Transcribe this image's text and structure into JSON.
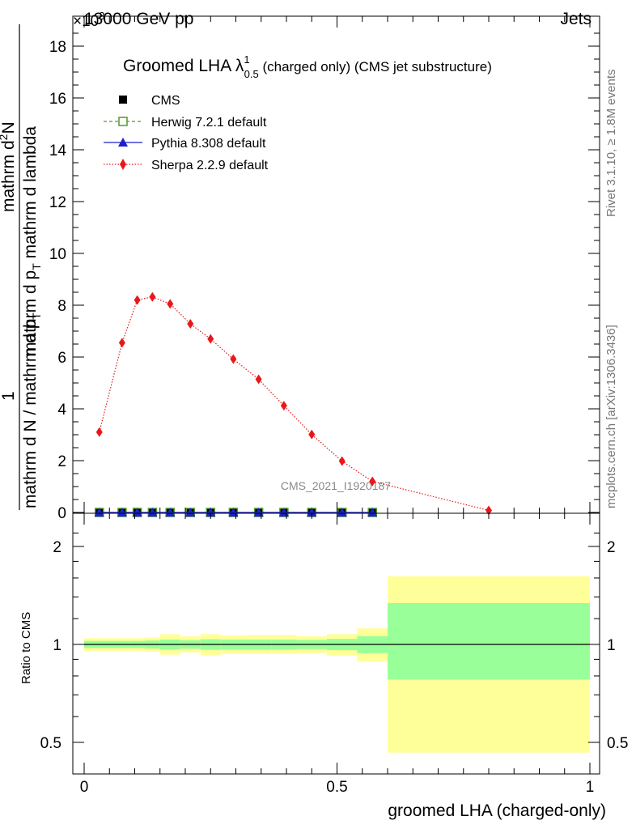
{
  "header": {
    "left_label": "13000 GeV pp",
    "right_label": "Jets",
    "multiplier": "×10",
    "multiplier_exp": "3"
  },
  "side_labels": {
    "rivet": "Rivet 3.1.10, ≥ 1.8M events",
    "mcplots": "mcplots.cern.ch [arXiv:1306.3436]"
  },
  "watermark": "CMS_2021_I1920187",
  "chart_data": [
    {
      "type": "line",
      "title_main": "Groomed LHA ",
      "title_lambda": "λ",
      "title_sup": "1",
      "title_sub": "0.5",
      "title_rest": "(charged only) (CMS jet substructure)",
      "ylabel_num": "1",
      "ylabel_den": "mathrm d N / mathrm d p",
      "ylabel_den_sub": "T",
      "ylabel_main": "mathrm d",
      "ylabel_main_sup": "2",
      "ylabel_main_rest": "N",
      "ylabel_main2": "mathrm d p",
      "ylabel_main2_sub": "T",
      "ylabel_main3": "mathrm d lambda",
      "xlim": [
        0,
        1
      ],
      "ylim": [
        0,
        18.8
      ],
      "y_scale_label": "×10^3",
      "yticks": [
        0,
        2,
        4,
        6,
        8,
        10,
        12,
        14,
        16,
        18
      ],
      "legend_position": "top-left",
      "series": [
        {
          "name": "CMS",
          "color": "#000000",
          "marker": "square",
          "x": [
            0.03,
            0.075,
            0.105,
            0.135,
            0.17,
            0.21,
            0.25,
            0.295,
            0.345,
            0.395,
            0.45,
            0.51,
            0.57
          ],
          "values": [
            0,
            0,
            0,
            0,
            0,
            0,
            0,
            0,
            0,
            0,
            0,
            0,
            0
          ]
        },
        {
          "name": "Herwig 7.2.1 default",
          "color": "#4f9b2b",
          "marker": "open-square",
          "linestyle": "dashed",
          "x": [
            0.03,
            0.075,
            0.105,
            0.135,
            0.17,
            0.21,
            0.25,
            0.295,
            0.345,
            0.395,
            0.45,
            0.51,
            0.57
          ],
          "values": [
            0,
            0,
            0,
            0,
            0,
            0,
            0,
            0,
            0,
            0,
            0,
            0,
            0
          ]
        },
        {
          "name": "Pythia 8.308 default",
          "color": "#1f1fcf",
          "marker": "triangle",
          "linestyle": "solid",
          "x": [
            0.03,
            0.075,
            0.105,
            0.135,
            0.17,
            0.21,
            0.25,
            0.295,
            0.345,
            0.395,
            0.45,
            0.51,
            0.57
          ],
          "values": [
            0,
            0,
            0,
            0,
            0,
            0,
            0,
            0,
            0,
            0,
            0,
            0,
            0
          ]
        },
        {
          "name": "Sherpa 2.2.9 default",
          "color": "#e8181a",
          "marker": "diamond",
          "linestyle": "dotted",
          "x": [
            0.03,
            0.075,
            0.105,
            0.135,
            0.17,
            0.21,
            0.25,
            0.295,
            0.345,
            0.395,
            0.45,
            0.51,
            0.57,
            0.8
          ],
          "values": [
            3.1,
            6.55,
            8.2,
            8.32,
            8.05,
            7.28,
            6.7,
            5.92,
            5.14,
            4.12,
            3.01,
            1.98,
            1.2,
            0.08
          ]
        }
      ]
    },
    {
      "type": "area",
      "ylabel": "Ratio to CMS",
      "xlabel": "groomed LHA (charged-only)",
      "xlim": [
        0,
        1
      ],
      "ylim": [
        0.42,
        2.3
      ],
      "y_scale": "log",
      "yticks": [
        0.5,
        1,
        2
      ],
      "ytick_labels": [
        "0.5",
        "1",
        "2"
      ],
      "xticks": [
        0,
        0.5,
        1
      ],
      "xtick_labels": [
        "0",
        "0.5",
        "1"
      ],
      "reference_line": 1,
      "band_colors": {
        "outer": "#ffff99",
        "inner": "#99ff99"
      },
      "bins": [
        {
          "x0": 0.0,
          "x1": 0.06,
          "outer": [
            0.955,
            1.045
          ],
          "inner": [
            0.975,
            1.025
          ]
        },
        {
          "x0": 0.06,
          "x1": 0.09,
          "outer": [
            0.955,
            1.045
          ],
          "inner": [
            0.975,
            1.025
          ]
        },
        {
          "x0": 0.09,
          "x1": 0.12,
          "outer": [
            0.955,
            1.045
          ],
          "inner": [
            0.975,
            1.025
          ]
        },
        {
          "x0": 0.12,
          "x1": 0.15,
          "outer": [
            0.95,
            1.05
          ],
          "inner": [
            0.972,
            1.028
          ]
        },
        {
          "x0": 0.15,
          "x1": 0.19,
          "outer": [
            0.93,
            1.075
          ],
          "inner": [
            0.965,
            1.035
          ]
        },
        {
          "x0": 0.19,
          "x1": 0.23,
          "outer": [
            0.945,
            1.06
          ],
          "inner": [
            0.97,
            1.03
          ]
        },
        {
          "x0": 0.23,
          "x1": 0.27,
          "outer": [
            0.925,
            1.075
          ],
          "inner": [
            0.963,
            1.037
          ]
        },
        {
          "x0": 0.27,
          "x1": 0.32,
          "outer": [
            0.935,
            1.065
          ],
          "inner": [
            0.965,
            1.035
          ]
        },
        {
          "x0": 0.32,
          "x1": 0.37,
          "outer": [
            0.935,
            1.07
          ],
          "inner": [
            0.965,
            1.035
          ]
        },
        {
          "x0": 0.37,
          "x1": 0.42,
          "outer": [
            0.935,
            1.07
          ],
          "inner": [
            0.965,
            1.035
          ]
        },
        {
          "x0": 0.42,
          "x1": 0.48,
          "outer": [
            0.94,
            1.06
          ],
          "inner": [
            0.968,
            1.032
          ]
        },
        {
          "x0": 0.48,
          "x1": 0.54,
          "outer": [
            0.925,
            1.075
          ],
          "inner": [
            0.96,
            1.04
          ]
        },
        {
          "x0": 0.54,
          "x1": 0.6,
          "outer": [
            0.885,
            1.12
          ],
          "inner": [
            0.94,
            1.06
          ]
        },
        {
          "x0": 0.6,
          "x1": 1.0,
          "outer": [
            0.465,
            1.62
          ],
          "inner": [
            0.78,
            1.34
          ]
        }
      ]
    }
  ]
}
